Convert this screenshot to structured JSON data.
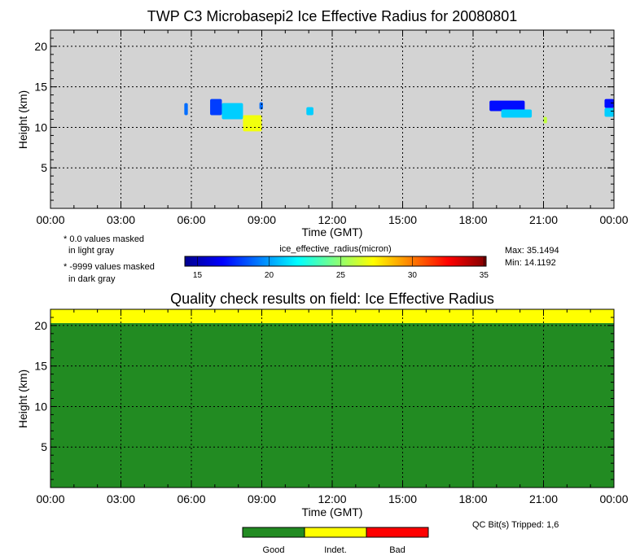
{
  "chart_data": [
    {
      "type": "heatmap",
      "title": "TWP C3 Microbasepi2 Ice Effective Radius for 20080801",
      "xlabel": "Time (GMT)",
      "ylabel": "Height (km)",
      "x_ticks": [
        "00:00",
        "03:00",
        "06:00",
        "09:00",
        "12:00",
        "15:00",
        "18:00",
        "21:00",
        "00:00"
      ],
      "xlim_hours": [
        0,
        24
      ],
      "y_ticks": [
        "5",
        "10",
        "15",
        "20"
      ],
      "ylim": [
        0,
        22
      ],
      "grid": true,
      "background_color": "#d3d3d3",
      "notes": [
        "* 0.0 values masked",
        "in light gray",
        "* -9999 values masked",
        "in dark gray"
      ],
      "colorbar": {
        "label": "ice_effective_radius(micron)",
        "ticks": [
          "15",
          "20",
          "25",
          "30",
          "35"
        ],
        "range": [
          14.1192,
          35.1494
        ]
      },
      "max_label": "Max: 35.1494",
      "min_label": "Min: 14.1192",
      "cloud_features": [
        {
          "t0": 5.7,
          "t1": 5.85,
          "h0": 11.5,
          "h1": 13.0,
          "value": 19
        },
        {
          "t0": 6.8,
          "t1": 7.3,
          "h0": 11.5,
          "h1": 13.5,
          "value": 18
        },
        {
          "t0": 7.3,
          "t1": 8.2,
          "h0": 11.0,
          "h1": 13.0,
          "value": 21
        },
        {
          "t0": 8.2,
          "t1": 9.0,
          "h0": 9.5,
          "h1": 11.5,
          "value": 27
        },
        {
          "t0": 8.9,
          "t1": 9.05,
          "h0": 12.2,
          "h1": 13.1,
          "value": 19
        },
        {
          "t0": 10.9,
          "t1": 11.2,
          "h0": 11.5,
          "h1": 12.5,
          "value": 21
        },
        {
          "t0": 18.7,
          "t1": 20.2,
          "h0": 12.0,
          "h1": 13.3,
          "value": 17
        },
        {
          "t0": 19.2,
          "t1": 20.5,
          "h0": 11.2,
          "h1": 12.2,
          "value": 21
        },
        {
          "t0": 21.0,
          "t1": 21.15,
          "h0": 10.5,
          "h1": 11.3,
          "value": 26
        },
        {
          "t0": 23.6,
          "t1": 24.0,
          "h0": 12.4,
          "h1": 13.5,
          "value": 17
        },
        {
          "t0": 23.6,
          "t1": 24.0,
          "h0": 11.3,
          "h1": 12.4,
          "value": 21
        }
      ]
    },
    {
      "type": "heatmap",
      "title": "Quality check results on field: Ice Effective Radius",
      "xlabel": "Time (GMT)",
      "ylabel": "Height (km)",
      "x_ticks": [
        "00:00",
        "03:00",
        "06:00",
        "09:00",
        "12:00",
        "15:00",
        "18:00",
        "21:00",
        "00:00"
      ],
      "xlim_hours": [
        0,
        24
      ],
      "y_ticks": [
        "5",
        "10",
        "15",
        "20"
      ],
      "ylim": [
        0,
        22
      ],
      "grid": true,
      "regions": [
        {
          "h0": 0,
          "h1": 20.3,
          "state": "Good"
        },
        {
          "h0": 20.3,
          "h1": 22,
          "state": "Indet."
        }
      ],
      "legend": [
        {
          "label": "Good",
          "color": "#228b22"
        },
        {
          "label": "Indet.",
          "color": "#ffff00"
        },
        {
          "label": "Bad",
          "color": "#ff0000"
        }
      ],
      "qc_bits_label": "QC Bit(s) Tripped: 1,6"
    }
  ]
}
